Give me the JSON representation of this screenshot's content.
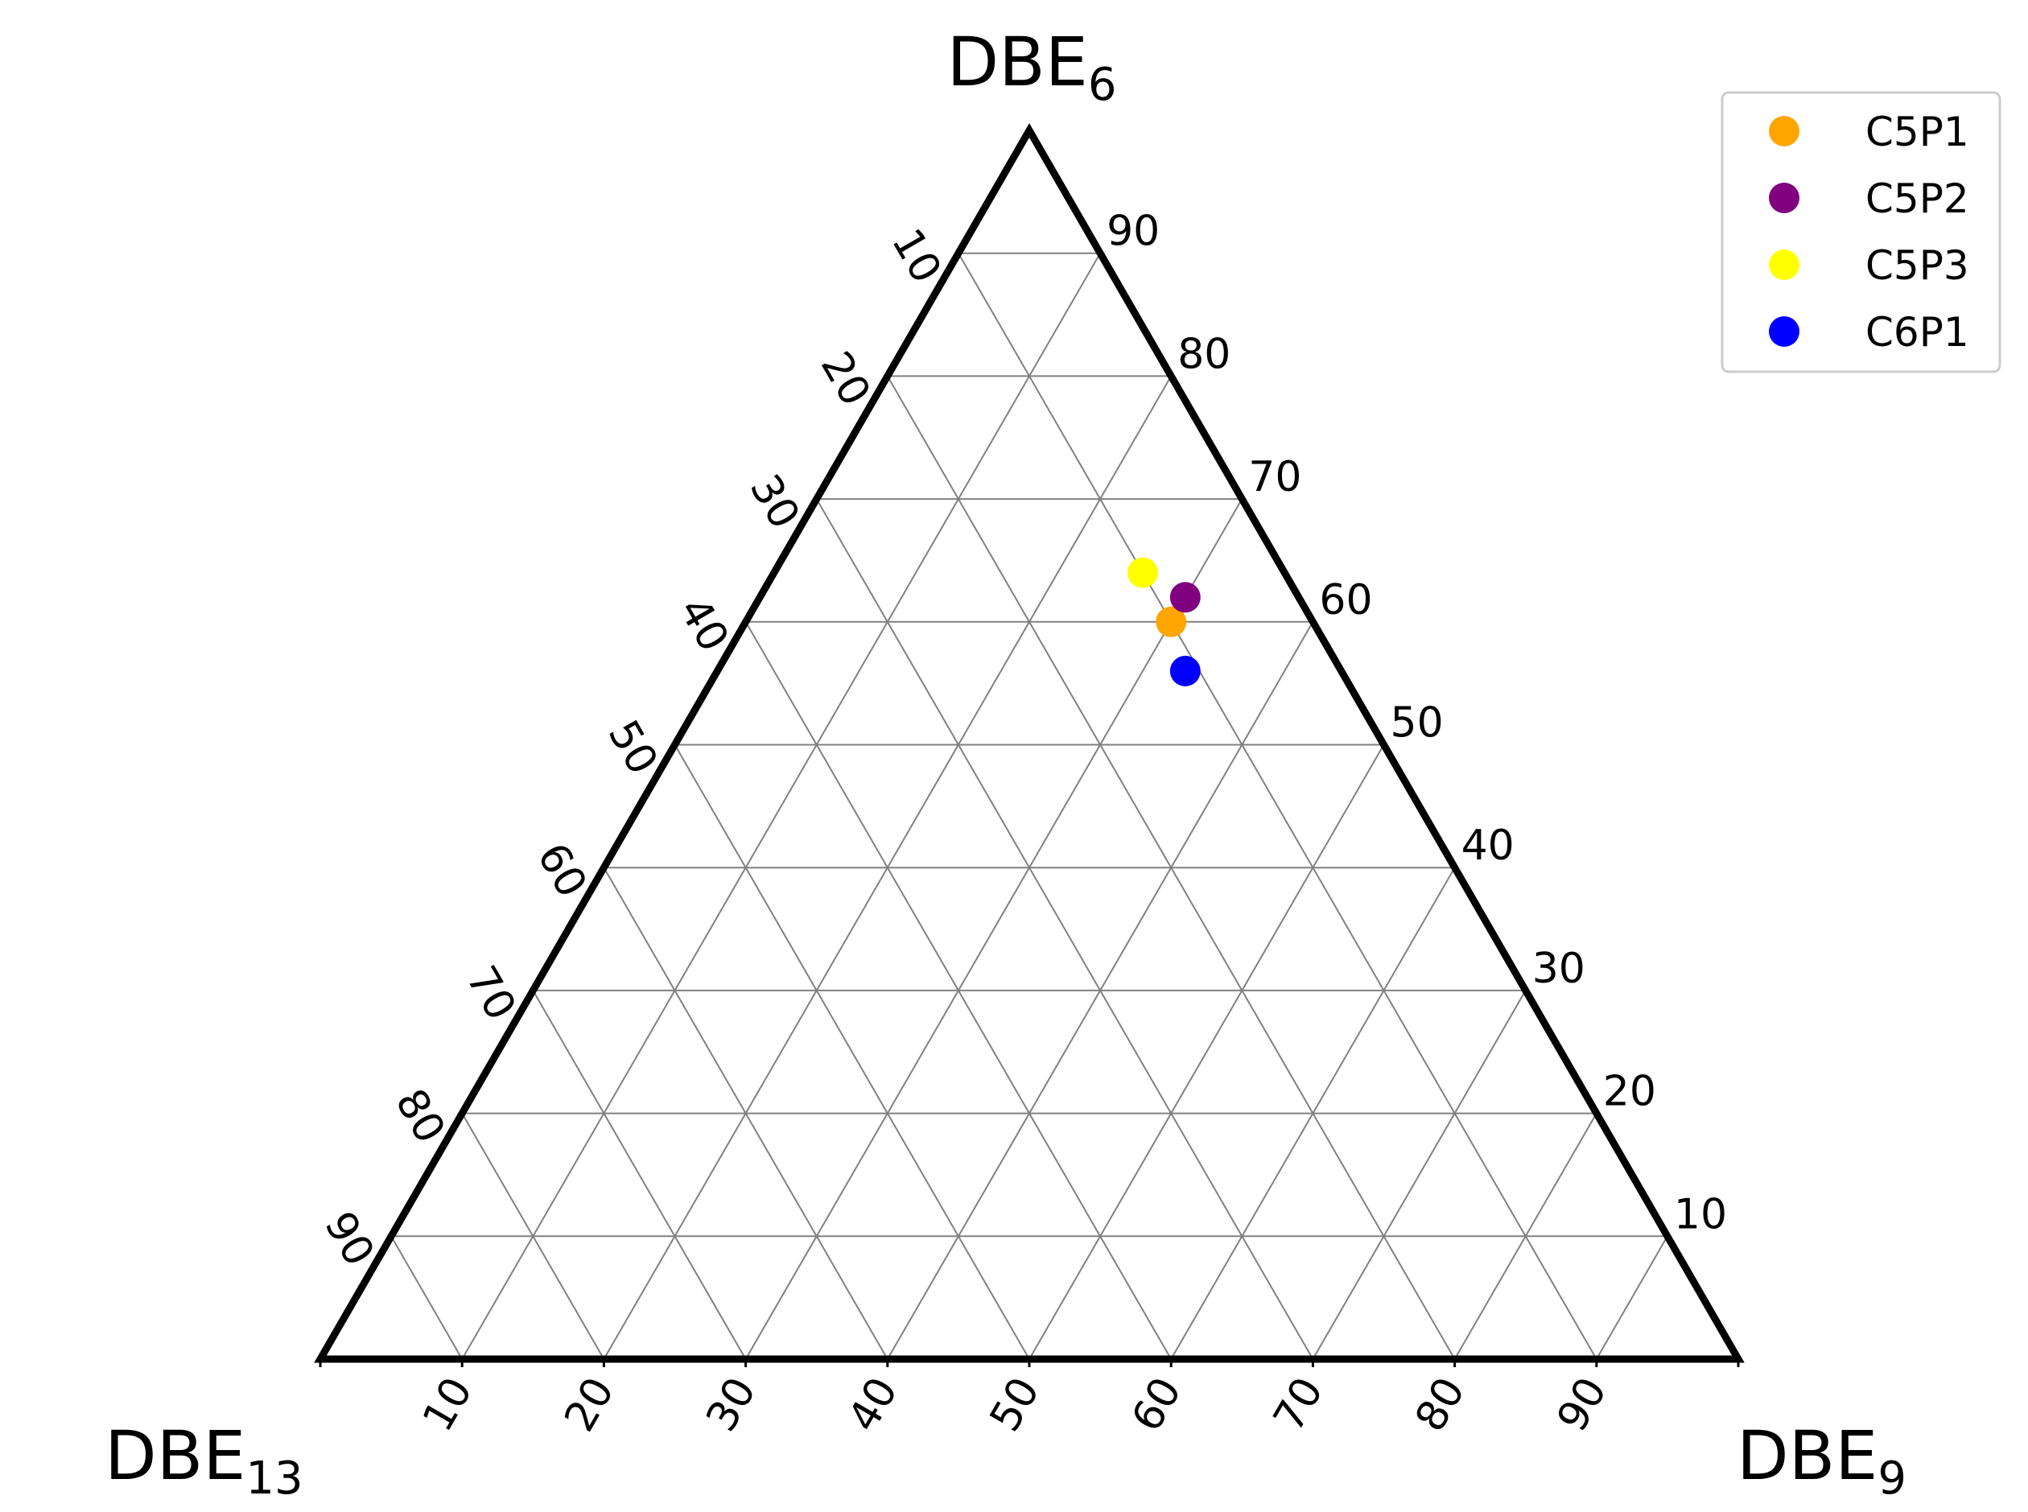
{
  "chart_data": {
    "type": "scatter",
    "subtype": "ternary",
    "corners": {
      "top": {
        "base": "DBE",
        "sub": "6"
      },
      "left": {
        "base": "DBE",
        "sub": "13"
      },
      "right": {
        "base": "DBE",
        "sub": "9"
      }
    },
    "ticks": [
      10,
      20,
      30,
      40,
      50,
      60,
      70,
      80,
      90
    ],
    "range": [
      0,
      100
    ],
    "grid": true,
    "legend_position": "top-right",
    "series": [
      {
        "name": "C5P1",
        "color": "#ffa500",
        "points": [
          {
            "DBE6": 60,
            "DBE9": 30,
            "DBE13": 10
          }
        ]
      },
      {
        "name": "C5P2",
        "color": "#800080",
        "points": [
          {
            "DBE6": 62,
            "DBE9": 30,
            "DBE13": 8
          }
        ]
      },
      {
        "name": "C5P3",
        "color": "#ffff00",
        "points": [
          {
            "DBE6": 64,
            "DBE9": 26,
            "DBE13": 10
          }
        ]
      },
      {
        "name": "C6P1",
        "color": "#0000ff",
        "points": [
          {
            "DBE6": 56,
            "DBE9": 33,
            "DBE13": 11
          }
        ]
      }
    ]
  }
}
